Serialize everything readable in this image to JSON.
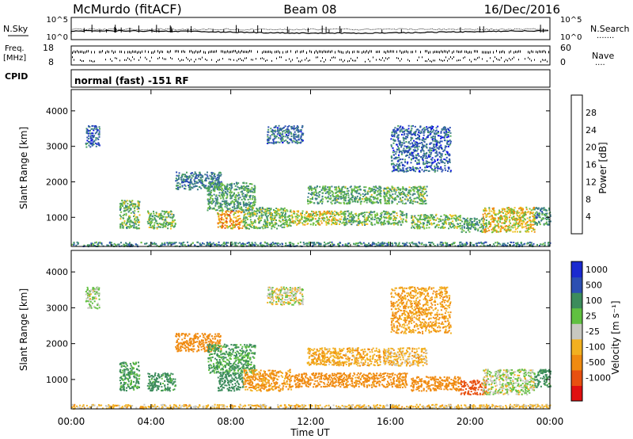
{
  "header": {
    "station": "McMurdo (fitACF)",
    "beam": "Beam 08",
    "date": "16/Dec/2016"
  },
  "sky_panel": {
    "left_label": "N.Sky",
    "right_label": "N.Search",
    "right_dots": ".......",
    "left_ticks": [
      "10^5",
      "10^0"
    ],
    "right_ticks": [
      "10^5",
      "10^0"
    ]
  },
  "freq_panel": {
    "left_label_line1": "Freq.",
    "left_label_line2": "[MHz]",
    "right_label": "Nave",
    "right_dots": "....",
    "left_ticks": [
      "18",
      "8"
    ],
    "right_ticks": [
      "60",
      "0"
    ]
  },
  "cpid_panel": {
    "label": "CPID",
    "text": "normal (fast) -151 RF"
  },
  "colors": {
    "power_scale": [
      "#0a10e6",
      "#2c4fb2",
      "#3c7c8c",
      "#4aa060",
      "#70c040",
      "#f0c020",
      "#f08a10",
      "#e85010",
      "#e01010"
    ],
    "velocity_scale": [
      "#e01010",
      "#e85010",
      "#f08a10",
      "#f2b020",
      "#c8c8c0",
      "#60c040",
      "#3c8c5c",
      "#2c4fb2",
      "#1a2ad0"
    ]
  },
  "chart_data": [
    {
      "type": "heatmap",
      "name": "power-panel",
      "xlabel": "",
      "ylabel": "Slant Range [km]",
      "yticks": [
        1000,
        2000,
        3000,
        4000
      ],
      "ylim": [
        180,
        4600
      ],
      "xlim_hours": [
        0,
        24
      ],
      "colorbar": {
        "label": "Power [dB]",
        "ticks": [
          "4",
          "8",
          "12",
          "16",
          "20",
          "24",
          "28"
        ],
        "range": [
          0,
          32
        ]
      },
      "echo_regions": [
        {
          "t": [
            0.0,
            24.0
          ],
          "r": [
            200,
            320
          ],
          "v": 10
        },
        {
          "t": [
            0.7,
            1.4
          ],
          "r": [
            3000,
            3600
          ],
          "v": 7
        },
        {
          "t": [
            2.4,
            3.4
          ],
          "r": [
            700,
            1500
          ],
          "v": 14
        },
        {
          "t": [
            3.8,
            5.2
          ],
          "r": [
            700,
            1200
          ],
          "v": 15
        },
        {
          "t": [
            5.2,
            7.5
          ],
          "r": [
            1800,
            2300
          ],
          "v": 9
        },
        {
          "t": [
            6.8,
            9.2
          ],
          "r": [
            1200,
            2000
          ],
          "v": 12
        },
        {
          "t": [
            7.3,
            8.6
          ],
          "r": [
            700,
            1200
          ],
          "v": 22
        },
        {
          "t": [
            8.6,
            11.0
          ],
          "r": [
            700,
            1300
          ],
          "v": 15
        },
        {
          "t": [
            9.8,
            11.6
          ],
          "r": [
            3100,
            3600
          ],
          "v": 8
        },
        {
          "t": [
            11.0,
            13.6
          ],
          "r": [
            800,
            1200
          ],
          "v": 18
        },
        {
          "t": [
            11.8,
            15.5
          ],
          "r": [
            1400,
            1900
          ],
          "v": 13
        },
        {
          "t": [
            13.6,
            16.8
          ],
          "r": [
            800,
            1200
          ],
          "v": 14
        },
        {
          "t": [
            15.6,
            17.8
          ],
          "r": [
            1400,
            1900
          ],
          "v": 14
        },
        {
          "t": [
            16.0,
            19.0
          ],
          "r": [
            2300,
            3600
          ],
          "v": 7
        },
        {
          "t": [
            17.0,
            19.5
          ],
          "r": [
            700,
            1100
          ],
          "v": 15
        },
        {
          "t": [
            19.5,
            20.8
          ],
          "r": [
            600,
            1000
          ],
          "v": 12
        },
        {
          "t": [
            20.6,
            23.2
          ],
          "r": [
            600,
            1300
          ],
          "v": 19
        },
        {
          "t": [
            23.2,
            24.0
          ],
          "r": [
            800,
            1300
          ],
          "v": 11
        }
      ]
    },
    {
      "type": "heatmap",
      "name": "velocity-panel",
      "xlabel": "Time UT",
      "ylabel": "Slant Range [km]",
      "xticks": [
        "00:00",
        "04:00",
        "08:00",
        "12:00",
        "16:00",
        "20:00",
        "00:00"
      ],
      "xtick_hours": [
        0,
        4,
        8,
        12,
        16,
        20,
        24
      ],
      "yticks": [
        1000,
        2000,
        3000,
        4000
      ],
      "ylim": [
        180,
        4600
      ],
      "xlim_hours": [
        0,
        24
      ],
      "colorbar": {
        "label": "Velocity [m s⁻¹]",
        "ticks": [
          "1000",
          "500",
          "100",
          "25",
          "-25",
          "-100",
          "-500",
          "-1000"
        ]
      },
      "echo_regions": [
        {
          "t": [
            0.0,
            24.0
          ],
          "r": [
            200,
            320
          ],
          "v": -50
        },
        {
          "t": [
            0.7,
            1.4
          ],
          "r": [
            3000,
            3600
          ],
          "v": 30
        },
        {
          "t": [
            2.4,
            3.4
          ],
          "r": [
            700,
            1500
          ],
          "v": 120
        },
        {
          "t": [
            3.8,
            5.2
          ],
          "r": [
            700,
            1200
          ],
          "v": 150
        },
        {
          "t": [
            5.2,
            7.5
          ],
          "r": [
            1800,
            2300
          ],
          "v": -300
        },
        {
          "t": [
            6.8,
            9.2
          ],
          "r": [
            1200,
            2000
          ],
          "v": 110
        },
        {
          "t": [
            7.3,
            8.6
          ],
          "r": [
            700,
            1200
          ],
          "v": 200
        },
        {
          "t": [
            8.6,
            11.0
          ],
          "r": [
            700,
            1300
          ],
          "v": -120
        },
        {
          "t": [
            9.8,
            11.6
          ],
          "r": [
            3100,
            3600
          ],
          "v": 0
        },
        {
          "t": [
            11.0,
            13.6
          ],
          "r": [
            800,
            1200
          ],
          "v": -200
        },
        {
          "t": [
            11.8,
            15.5
          ],
          "r": [
            1400,
            1900
          ],
          "v": -80
        },
        {
          "t": [
            13.6,
            16.8
          ],
          "r": [
            800,
            1200
          ],
          "v": -150
        },
        {
          "t": [
            15.6,
            17.8
          ],
          "r": [
            1400,
            1900
          ],
          "v": -60
        },
        {
          "t": [
            16.0,
            19.0
          ],
          "r": [
            2300,
            3600
          ],
          "v": -100
        },
        {
          "t": [
            17.0,
            19.5
          ],
          "r": [
            700,
            1100
          ],
          "v": -180
        },
        {
          "t": [
            19.5,
            20.8
          ],
          "r": [
            600,
            1000
          ],
          "v": -600
        },
        {
          "t": [
            20.6,
            23.2
          ],
          "r": [
            600,
            1300
          ],
          "v": 10
        },
        {
          "t": [
            23.2,
            24.0
          ],
          "r": [
            800,
            1300
          ],
          "v": 150
        }
      ]
    }
  ]
}
